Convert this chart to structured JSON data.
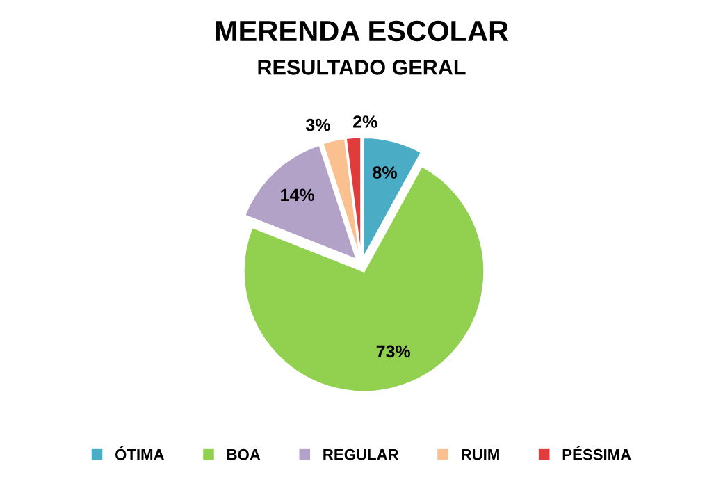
{
  "chart_data": {
    "type": "pie",
    "title": "MERENDA ESCOLAR",
    "subtitle": "RESULTADO GERAL",
    "categories": [
      "ÓTIMA",
      "BOA",
      "REGULAR",
      "RUIM",
      "PÉSSIMA"
    ],
    "values": [
      8,
      73,
      14,
      3,
      2
    ],
    "colors": [
      "#4bacc6",
      "#92d050",
      "#b3a2c7",
      "#fac090",
      "#e03c3c"
    ],
    "data_labels": true,
    "value_labels": [
      "8%",
      "73%",
      "14%",
      "3%",
      "2%"
    ],
    "legend": "bottom"
  }
}
